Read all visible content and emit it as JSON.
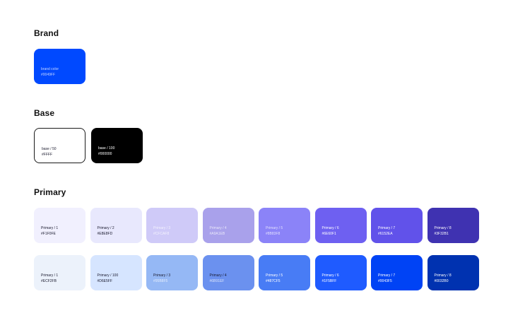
{
  "brand": {
    "title": "Brand",
    "swatches": [
      {
        "name": "brand color",
        "hex": "#0049FF",
        "color": "#0049FF"
      }
    ]
  },
  "base": {
    "title": "Base",
    "swatches": [
      {
        "name": "base / 50",
        "hex": "#FFFF",
        "color": "#FFFFFF"
      },
      {
        "name": "base / 100",
        "hex": "#000000",
        "color": "#000000"
      }
    ]
  },
  "primary": {
    "title": "Primary",
    "row1": [
      {
        "name": "Primary / 1",
        "hex": "#F1F0FE",
        "color": "#F1F0FE"
      },
      {
        "name": "Primary / 2",
        "hex": "#E8E8FD",
        "color": "#E8E8FD"
      },
      {
        "name": "Primary / 3",
        "hex": "#CFCAF8",
        "color": "#CFCAF8"
      },
      {
        "name": "Primary / 4",
        "hex": "#A9A1EB",
        "color": "#A9A1EB"
      },
      {
        "name": "Primary / 5",
        "hex": "#8B83F8",
        "color": "#8B83F8"
      },
      {
        "name": "Primary / 6",
        "hex": "#6E60F1",
        "color": "#6E60F1"
      },
      {
        "name": "Primary / 7",
        "hex": "#6152EA",
        "color": "#6152EA"
      },
      {
        "name": "Primary / 8",
        "hex": "#3F32B1",
        "color": "#3F32B1"
      }
    ],
    "row2": [
      {
        "name": "Primary / 1",
        "hex": "#ECF2FB",
        "color": "#ECF2FB"
      },
      {
        "name": "Primary / 100",
        "hex": "#D6E5FF",
        "color": "#D6E5FF"
      },
      {
        "name": "Primary / 3",
        "hex": "#95B8F5",
        "color": "#95B8F5"
      },
      {
        "name": "Primary / 4",
        "hex": "#6B91EF",
        "color": "#6B91EF"
      },
      {
        "name": "Primary / 5",
        "hex": "#487CF5",
        "color": "#487CF5"
      },
      {
        "name": "Primary / 6",
        "hex": "#1F5BFF",
        "color": "#1F5BFF"
      },
      {
        "name": "Primary / 7",
        "hex": "#0043F5",
        "color": "#0043F5"
      },
      {
        "name": "Primary / 8",
        "hex": "#0032B0",
        "color": "#0032B0"
      }
    ]
  }
}
